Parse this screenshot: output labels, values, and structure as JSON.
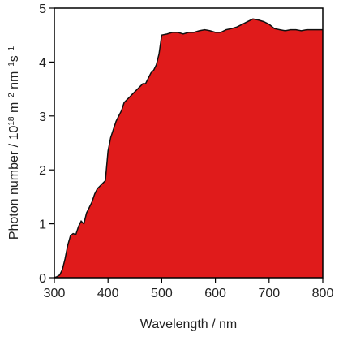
{
  "chart_data": {
    "type": "area",
    "title": "",
    "xlabel": "Wavelength / nm",
    "ylabel_parts": {
      "pre": "Photon number / 10",
      "exp1": "18",
      "mid": " m",
      "exp2": "−2",
      "mid2": " nm",
      "exp3": "−1",
      "mid3": "s",
      "exp4": "−1"
    },
    "xlim": [
      300,
      800
    ],
    "ylim": [
      0,
      5
    ],
    "x_ticks": [
      300,
      400,
      500,
      600,
      700,
      800
    ],
    "y_ticks": [
      0,
      1,
      2,
      3,
      4,
      5
    ],
    "grid": false,
    "legend": "none",
    "fill_color": "#e01b1b",
    "line_color": "#111111",
    "series": [
      {
        "x": [
          300,
          305,
          310,
          315,
          320,
          325,
          330,
          335,
          340,
          345,
          350,
          355,
          360,
          365,
          370,
          375,
          380,
          385,
          390,
          395,
          400,
          403,
          405,
          410,
          415,
          420,
          425,
          430,
          435,
          440,
          445,
          450,
          455,
          460,
          465,
          470,
          475,
          480,
          485,
          490,
          495,
          500,
          510,
          520,
          530,
          540,
          550,
          560,
          570,
          580,
          590,
          600,
          610,
          620,
          630,
          640,
          650,
          660,
          670,
          680,
          690,
          700,
          710,
          720,
          730,
          740,
          750,
          760,
          770,
          780,
          790,
          800
        ],
        "values": [
          0.0,
          0.02,
          0.05,
          0.15,
          0.35,
          0.6,
          0.78,
          0.82,
          0.8,
          0.95,
          1.05,
          1.0,
          1.2,
          1.3,
          1.4,
          1.55,
          1.65,
          1.7,
          1.75,
          1.8,
          2.35,
          2.5,
          2.6,
          2.75,
          2.9,
          3.0,
          3.1,
          3.25,
          3.3,
          3.35,
          3.4,
          3.45,
          3.5,
          3.55,
          3.6,
          3.6,
          3.7,
          3.8,
          3.85,
          3.95,
          4.15,
          4.5,
          4.52,
          4.55,
          4.55,
          4.52,
          4.55,
          4.55,
          4.58,
          4.6,
          4.58,
          4.55,
          4.55,
          4.6,
          4.62,
          4.65,
          4.7,
          4.75,
          4.8,
          4.78,
          4.75,
          4.7,
          4.62,
          4.6,
          4.58,
          4.6,
          4.6,
          4.58,
          4.6,
          4.6,
          4.6,
          4.6
        ]
      }
    ]
  }
}
